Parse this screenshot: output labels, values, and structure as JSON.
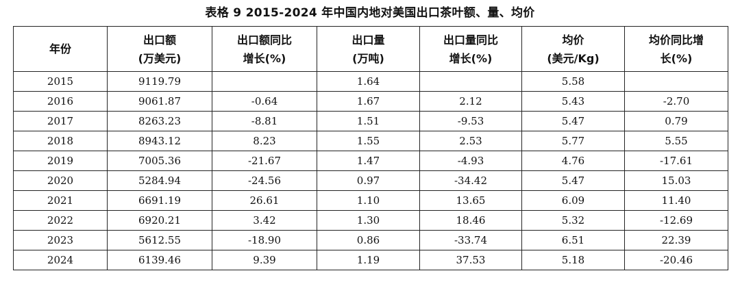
{
  "caption": "表格 9 2015-2024 年中国内地对美国出口茶叶额、量、均价",
  "headers": [
    [
      "年份",
      ""
    ],
    [
      "出口额",
      "(万美元)"
    ],
    [
      "出口额同比",
      "增长(%)"
    ],
    [
      "出口量",
      "(万吨)"
    ],
    [
      "出口量同比",
      "增长(%)"
    ],
    [
      "均价",
      "(美元/Kg)"
    ],
    [
      "均价同比增",
      "长(%)"
    ]
  ],
  "rows": [
    [
      "2015",
      "9119.79",
      "",
      "1.64",
      "",
      "5.58",
      ""
    ],
    [
      "2016",
      "9061.87",
      "-0.64",
      "1.67",
      "2.12",
      "5.43",
      "-2.70"
    ],
    [
      "2017",
      "8263.23",
      "-8.81",
      "1.51",
      "-9.53",
      "5.47",
      "0.79"
    ],
    [
      "2018",
      "8943.12",
      "8.23",
      "1.55",
      "2.53",
      "5.77",
      "5.55"
    ],
    [
      "2019",
      "7005.36",
      "-21.67",
      "1.47",
      "-4.93",
      "4.76",
      "-17.61"
    ],
    [
      "2020",
      "5284.94",
      "-24.56",
      "0.97",
      "-34.42",
      "5.47",
      "15.03"
    ],
    [
      "2021",
      "6691.19",
      "26.61",
      "1.10",
      "13.65",
      "6.09",
      "11.40"
    ],
    [
      "2022",
      "6920.21",
      "3.42",
      "1.30",
      "18.46",
      "5.32",
      "-12.69"
    ],
    [
      "2023",
      "5612.55",
      "-18.90",
      "0.86",
      "-33.74",
      "6.51",
      "22.39"
    ],
    [
      "2024",
      "6139.46",
      "9.39",
      "1.19",
      "37.53",
      "5.18",
      "-20.46"
    ]
  ]
}
